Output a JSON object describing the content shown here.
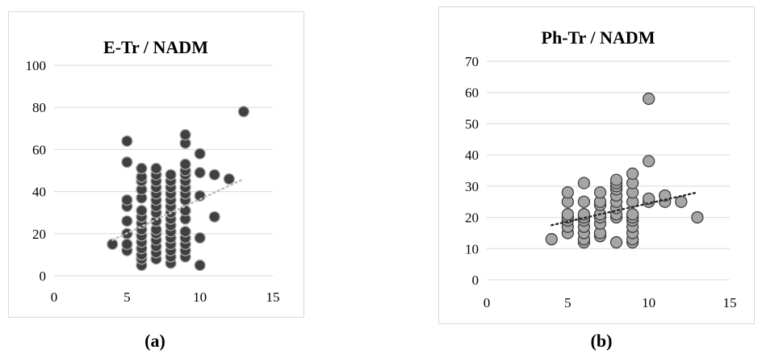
{
  "chart_data": [
    {
      "type": "scatter",
      "title": "E-Tr / NADM",
      "xlabel": "",
      "ylabel": "",
      "xlim": [
        0,
        15
      ],
      "ylim": [
        0,
        100
      ],
      "xticks": [
        "0",
        "5",
        "10",
        "15"
      ],
      "yticks": [
        "0",
        "20",
        "40",
        "60",
        "80",
        "100"
      ],
      "grid": "horizontal",
      "marker_color": "#404040",
      "marker_edge": "#a6a6a6",
      "trendline": {
        "type": "linear",
        "style": "dotted",
        "from": [
          4,
          17
        ],
        "to": [
          13,
          46
        ]
      },
      "points": [
        [
          4,
          15
        ],
        [
          5,
          12
        ],
        [
          5,
          15
        ],
        [
          5,
          20
        ],
        [
          5,
          26
        ],
        [
          5,
          33
        ],
        [
          5,
          36
        ],
        [
          5,
          54
        ],
        [
          5,
          64
        ],
        [
          6,
          5
        ],
        [
          6,
          8
        ],
        [
          6,
          10
        ],
        [
          6,
          13
        ],
        [
          6,
          16
        ],
        [
          6,
          19
        ],
        [
          6,
          22
        ],
        [
          6,
          25
        ],
        [
          6,
          28
        ],
        [
          6,
          31
        ],
        [
          6,
          37
        ],
        [
          6,
          41
        ],
        [
          6,
          45
        ],
        [
          6,
          47
        ],
        [
          6,
          51
        ],
        [
          7,
          8
        ],
        [
          7,
          11
        ],
        [
          7,
          14
        ],
        [
          7,
          17
        ],
        [
          7,
          20
        ],
        [
          7,
          22
        ],
        [
          7,
          26
        ],
        [
          7,
          30
        ],
        [
          7,
          33
        ],
        [
          7,
          36
        ],
        [
          7,
          39
        ],
        [
          7,
          42
        ],
        [
          7,
          45
        ],
        [
          7,
          48
        ],
        [
          7,
          51
        ],
        [
          8,
          6
        ],
        [
          8,
          9
        ],
        [
          8,
          12
        ],
        [
          8,
          15
        ],
        [
          8,
          18
        ],
        [
          8,
          21
        ],
        [
          8,
          24
        ],
        [
          8,
          27
        ],
        [
          8,
          30
        ],
        [
          8,
          33
        ],
        [
          8,
          36
        ],
        [
          8,
          39
        ],
        [
          8,
          42
        ],
        [
          8,
          45
        ],
        [
          8,
          48
        ],
        [
          9,
          9
        ],
        [
          9,
          12
        ],
        [
          9,
          15
        ],
        [
          9,
          18
        ],
        [
          9,
          21
        ],
        [
          9,
          27
        ],
        [
          9,
          31
        ],
        [
          9,
          36
        ],
        [
          9,
          39
        ],
        [
          9,
          42
        ],
        [
          9,
          45
        ],
        [
          9,
          48
        ],
        [
          9,
          50
        ],
        [
          9,
          53
        ],
        [
          9,
          63
        ],
        [
          9,
          67
        ],
        [
          10,
          5
        ],
        [
          10,
          18
        ],
        [
          10,
          38
        ],
        [
          10,
          49
        ],
        [
          10,
          58
        ],
        [
          11,
          28
        ],
        [
          11,
          48
        ],
        [
          12,
          46
        ],
        [
          13,
          78
        ]
      ]
    },
    {
      "type": "scatter",
      "title": "Ph-Tr / NADM",
      "xlabel": "",
      "ylabel": "",
      "xlim": [
        0,
        15
      ],
      "ylim": [
        0,
        70
      ],
      "xticks": [
        "0",
        "5",
        "10",
        "15"
      ],
      "yticks": [
        "0",
        "10",
        "20",
        "30",
        "40",
        "50",
        "60",
        "70"
      ],
      "grid": "horizontal",
      "marker_color": "#a6a6a6",
      "marker_edge": "#404040",
      "trendline": {
        "type": "linear",
        "style": "dotted",
        "from": [
          4,
          17.5
        ],
        "to": [
          13,
          28
        ]
      },
      "points": [
        [
          4,
          13
        ],
        [
          5,
          15
        ],
        [
          5,
          17
        ],
        [
          5,
          19
        ],
        [
          5,
          20
        ],
        [
          5,
          21
        ],
        [
          5,
          25
        ],
        [
          5,
          28
        ],
        [
          6,
          12
        ],
        [
          6,
          13
        ],
        [
          6,
          15
        ],
        [
          6,
          17
        ],
        [
          6,
          19
        ],
        [
          6,
          20
        ],
        [
          6,
          21
        ],
        [
          6,
          25
        ],
        [
          6,
          31
        ],
        [
          7,
          14
        ],
        [
          7,
          15
        ],
        [
          7,
          18
        ],
        [
          7,
          20
        ],
        [
          7,
          21
        ],
        [
          7,
          24
        ],
        [
          7,
          25
        ],
        [
          7,
          28
        ],
        [
          8,
          12
        ],
        [
          8,
          20
        ],
        [
          8,
          21
        ],
        [
          8,
          23
        ],
        [
          8,
          25
        ],
        [
          8,
          27
        ],
        [
          8,
          29
        ],
        [
          8,
          30
        ],
        [
          8,
          31
        ],
        [
          8,
          32
        ],
        [
          9,
          12
        ],
        [
          9,
          13
        ],
        [
          9,
          15
        ],
        [
          9,
          17
        ],
        [
          9,
          19
        ],
        [
          9,
          20
        ],
        [
          9,
          21
        ],
        [
          9,
          25
        ],
        [
          9,
          28
        ],
        [
          9,
          31
        ],
        [
          9,
          34
        ],
        [
          10,
          25
        ],
        [
          10,
          26
        ],
        [
          10,
          38
        ],
        [
          10,
          58
        ],
        [
          11,
          25
        ],
        [
          11,
          27
        ],
        [
          12,
          25
        ],
        [
          13,
          20
        ]
      ]
    }
  ],
  "captions": [
    "(a)",
    "(b)"
  ]
}
